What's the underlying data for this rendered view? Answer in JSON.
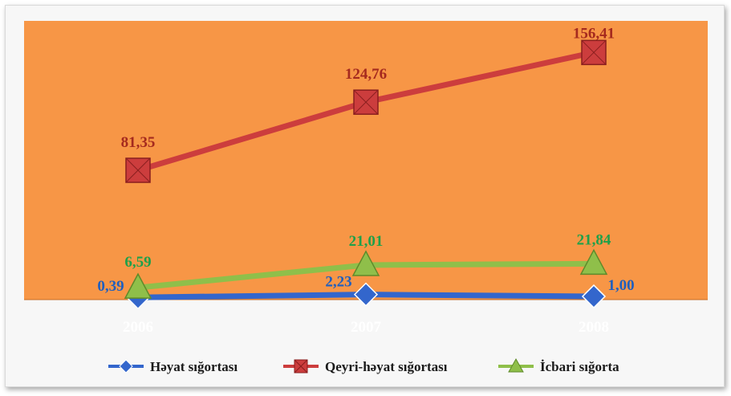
{
  "chart_data": {
    "type": "line",
    "categories": [
      "2006",
      "2007",
      "2008"
    ],
    "series": [
      {
        "name": "Həyat sığortası",
        "values": [
          0.39,
          2.23,
          1.0
        ],
        "labels": [
          "0,39",
          "2,23",
          "1,00"
        ],
        "color": "#3366cc",
        "marker": "diamond"
      },
      {
        "name": "Qeyri-həyat sığortası",
        "values": [
          81.35,
          124.76,
          156.41
        ],
        "labels": [
          "81,35",
          "124,76",
          "156,41"
        ],
        "color": "#cc3d3d",
        "marker": "square"
      },
      {
        "name": "İcbari sığorta",
        "values": [
          6.59,
          21.01,
          21.84
        ],
        "labels": [
          "6,59",
          "21,01",
          "21,84"
        ],
        "color": "#8fbf4a",
        "marker": "triangle"
      }
    ],
    "ylim": [
      0,
      175
    ],
    "grid": false,
    "legend": "bottom",
    "plot_background": "#f79646",
    "label_colors": {
      "Həyat sığortası": "#1f5fbf",
      "Qeyri-həyat sığortası": "#a52a1e",
      "İcbari sığorta": "#1fa04a"
    }
  }
}
